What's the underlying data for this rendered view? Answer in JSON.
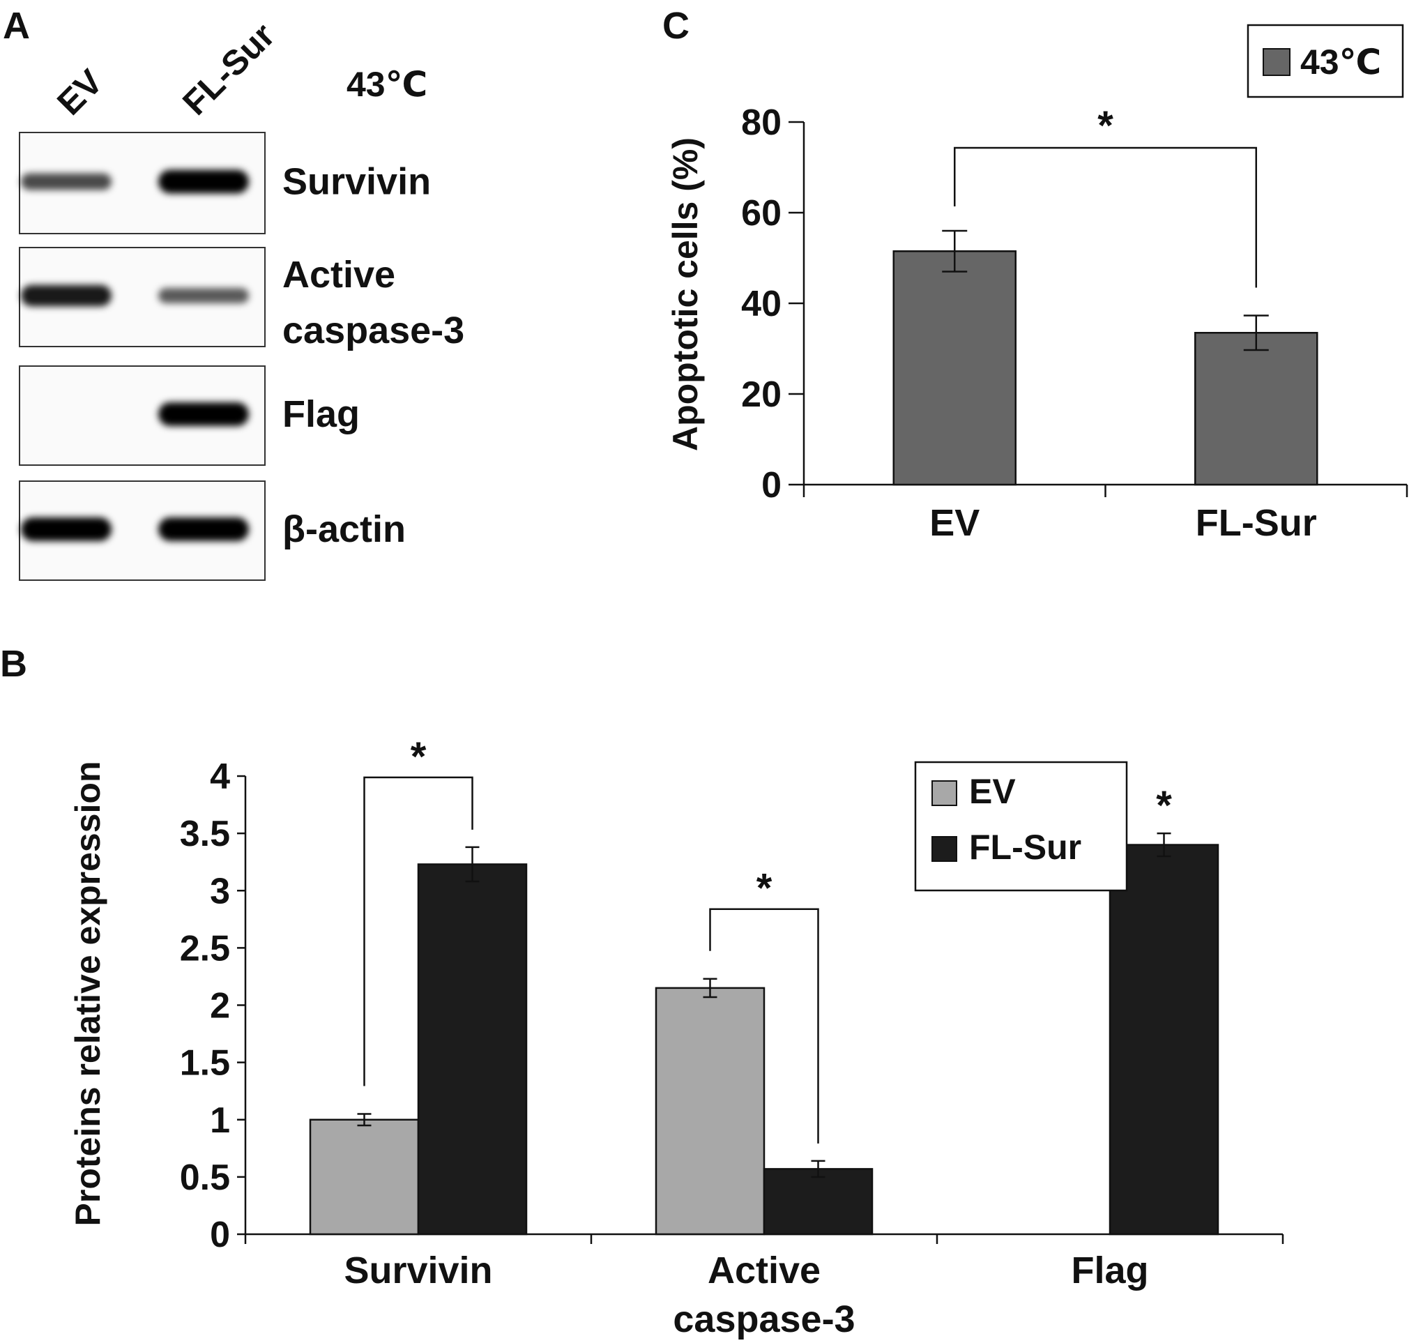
{
  "panels": {
    "a": {
      "letter": "A"
    },
    "b": {
      "letter": "B"
    },
    "c": {
      "letter": "C"
    }
  },
  "blot": {
    "lanes": [
      "EV",
      "FL-Sur"
    ],
    "condition": "43℃",
    "rows": [
      {
        "label_lines": [
          "Survivin"
        ],
        "bands": [
          0.55,
          1.0
        ]
      },
      {
        "label_lines": [
          "Active",
          "caspase-3"
        ],
        "bands": [
          0.85,
          0.45
        ]
      },
      {
        "label_lines": [
          "Flag"
        ],
        "bands": [
          0.0,
          1.0
        ]
      },
      {
        "label_lines": [
          "β-actin"
        ],
        "bands": [
          1.0,
          1.0
        ]
      }
    ]
  },
  "chart_data": [
    {
      "panel": "B",
      "type": "bar",
      "categories": [
        [
          "Survivin"
        ],
        [
          "Active",
          "caspase-3"
        ],
        [
          "Flag"
        ]
      ],
      "ylabel": "Proteins relative expression",
      "ylim": [
        0,
        4
      ],
      "yticks": [
        "0",
        "0.5",
        "1",
        "1.5",
        "2",
        "2.5",
        "3",
        "3.5",
        "4"
      ],
      "series": [
        {
          "name": "EV",
          "color": "#a8a8a8",
          "values": [
            1.0,
            2.15,
            null
          ],
          "errors": [
            0.05,
            0.08,
            null
          ]
        },
        {
          "name": "FL-Sur",
          "color": "#1c1c1c",
          "values": [
            3.23,
            0.57,
            3.4
          ],
          "errors": [
            0.15,
            0.07,
            0.1
          ]
        }
      ],
      "significance": [
        {
          "type": "bracket",
          "category": 0,
          "label": "*"
        },
        {
          "type": "bracket",
          "category": 1,
          "label": "*"
        },
        {
          "type": "single",
          "category": 2,
          "series": 1,
          "label": "*"
        }
      ],
      "legend": "top-right"
    },
    {
      "panel": "C",
      "type": "bar",
      "categories": [
        "EV",
        "FL-Sur"
      ],
      "ylabel": "Apoptotic cells (%)",
      "ylim": [
        0,
        80
      ],
      "yticks": [
        "0",
        "20",
        "40",
        "60",
        "80"
      ],
      "series": [
        {
          "name": "43℃",
          "color": "#666666",
          "values": [
            51.5,
            33.5
          ],
          "errors": [
            4.5,
            3.8
          ]
        }
      ],
      "significance": [
        {
          "type": "bracket",
          "between": [
            0,
            1
          ],
          "label": "*"
        }
      ],
      "legend": "top-right"
    }
  ]
}
